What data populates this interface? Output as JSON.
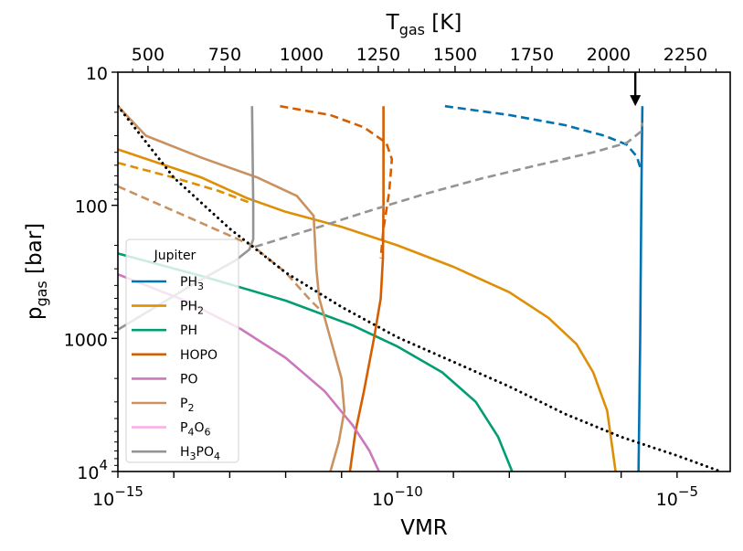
{
  "chart_data": {
    "type": "line",
    "title": "",
    "xlabel": "VMR",
    "ylabel_main": "p",
    "ylabel_sub": "gas",
    "ylabel_unit": " [bar]",
    "top_xlabel_main": "T",
    "top_xlabel_sub": "gas",
    "top_xlabel_unit": " [K]",
    "x_scale": "log",
    "y_scale": "log",
    "xlim_log10": [
      -15,
      -4.05
    ],
    "ylim": [
      10,
      10000
    ],
    "y_inverted": true,
    "top_xlim": [
      402,
      2396
    ],
    "x_ticks": [
      {
        "base": "10",
        "exp": "−15",
        "v": -15
      },
      {
        "base": "10",
        "exp": "−10",
        "v": -10
      },
      {
        "base": "10",
        "exp": "−5",
        "v": -5
      }
    ],
    "y_ticks": [
      {
        "label": "10",
        "exp": "",
        "v": 10
      },
      {
        "label": "100",
        "exp": "",
        "v": 100
      },
      {
        "label": "1000",
        "exp": "",
        "v": 1000
      },
      {
        "label": "10",
        "exp": "4",
        "v": 10000
      }
    ],
    "top_ticks": [
      500,
      750,
      1000,
      1250,
      1500,
      1750,
      2000,
      2250
    ],
    "legend": {
      "title": "Jupiter",
      "location": "lower-left",
      "entries": [
        {
          "main": "PH",
          "sub": "3",
          "tail": "",
          "sub2": "",
          "color": "#0173b2"
        },
        {
          "main": "PH",
          "sub": "2",
          "tail": "",
          "sub2": "",
          "color": "#de8f05"
        },
        {
          "main": "PH",
          "sub": "",
          "tail": "",
          "sub2": "",
          "color": "#029e73"
        },
        {
          "main": "HOPO",
          "sub": "",
          "tail": "",
          "sub2": "",
          "color": "#d55e00"
        },
        {
          "main": "PO",
          "sub": "",
          "tail": "",
          "sub2": "",
          "color": "#cc78bc"
        },
        {
          "main": "P",
          "sub": "2",
          "tail": "",
          "sub2": "",
          "color": "#ca9161"
        },
        {
          "main": "P",
          "sub": "4",
          "tail": "O",
          "sub2": "6",
          "color": "#fbafe4"
        },
        {
          "main": "H",
          "sub": "3",
          "tail": "PO",
          "sub2": "4",
          "color": "#949494"
        }
      ]
    },
    "annotation": {
      "type": "arrow",
      "T_K": 2087,
      "from_p": 10,
      "to_p": 18
    },
    "series": [
      {
        "name": "PH3 (solid)",
        "color": "#0173b2",
        "style": "solid",
        "points": [
          [
            -5.62,
            18
          ],
          [
            -5.63,
            40
          ],
          [
            -5.64,
            100
          ],
          [
            -5.66,
            1000
          ],
          [
            -5.69,
            10000
          ]
        ]
      },
      {
        "name": "PH3 (dashed)",
        "color": "#0173b2",
        "style": "dashed",
        "points": [
          [
            -9.15,
            18
          ],
          [
            -8.0,
            21
          ],
          [
            -7.0,
            25
          ],
          [
            -6.3,
            30
          ],
          [
            -5.9,
            35
          ],
          [
            -5.72,
            43
          ],
          [
            -5.64,
            55
          ]
        ]
      },
      {
        "name": "PH2 (solid)",
        "color": "#de8f05",
        "style": "solid",
        "points": [
          [
            -15,
            38
          ],
          [
            -13.5,
            62
          ],
          [
            -12.7,
            88
          ],
          [
            -12.0,
            112
          ],
          [
            -11.0,
            145
          ],
          [
            -10.0,
            200
          ],
          [
            -9.0,
            290
          ],
          [
            -8.0,
            450
          ],
          [
            -7.3,
            700
          ],
          [
            -6.8,
            1100
          ],
          [
            -6.5,
            1800
          ],
          [
            -6.25,
            3500
          ],
          [
            -6.1,
            10000
          ]
        ]
      },
      {
        "name": "PH2 (dashed)",
        "color": "#de8f05",
        "style": "dashed",
        "points": [
          [
            -15,
            48
          ],
          [
            -14,
            62
          ],
          [
            -13.2,
            78
          ],
          [
            -12.6,
            97
          ]
        ]
      },
      {
        "name": "PH",
        "color": "#029e73",
        "style": "solid",
        "points": [
          [
            -15,
            230
          ],
          [
            -13.5,
            340
          ],
          [
            -12.0,
            520
          ],
          [
            -10.8,
            800
          ],
          [
            -10.0,
            1150
          ],
          [
            -9.2,
            1800
          ],
          [
            -8.6,
            3000
          ],
          [
            -8.2,
            5500
          ],
          [
            -7.95,
            10000
          ]
        ]
      },
      {
        "name": "HOPO (solid)",
        "color": "#d55e00",
        "style": "solid",
        "points": [
          [
            -10.25,
            18
          ],
          [
            -10.25,
            100
          ],
          [
            -10.26,
            250
          ],
          [
            -10.3,
            500
          ],
          [
            -10.42,
            1000
          ],
          [
            -10.6,
            2500
          ],
          [
            -10.75,
            5000
          ],
          [
            -10.85,
            10000
          ]
        ]
      },
      {
        "name": "HOPO (dashed)",
        "color": "#d55e00",
        "style": "dashed",
        "points": [
          [
            -12.1,
            18
          ],
          [
            -11.2,
            21
          ],
          [
            -10.6,
            26
          ],
          [
            -10.2,
            34
          ],
          [
            -10.1,
            45
          ],
          [
            -10.15,
            80
          ],
          [
            -10.25,
            150
          ],
          [
            -10.3,
            250
          ]
        ]
      },
      {
        "name": "PO",
        "color": "#cc78bc",
        "style": "solid",
        "points": [
          [
            -15,
            330
          ],
          [
            -13.8,
            520
          ],
          [
            -12.8,
            850
          ],
          [
            -12.0,
            1400
          ],
          [
            -11.3,
            2500
          ],
          [
            -10.8,
            4500
          ],
          [
            -10.5,
            7000
          ],
          [
            -10.33,
            10000
          ]
        ]
      },
      {
        "name": "P2 (solid)",
        "color": "#ca9161",
        "style": "solid",
        "points": [
          [
            -15,
            18
          ],
          [
            -14.5,
            30
          ],
          [
            -13.5,
            44
          ],
          [
            -12.5,
            62
          ],
          [
            -11.8,
            85
          ],
          [
            -11.5,
            120
          ],
          [
            -11.45,
            300
          ],
          [
            -11.4,
            500
          ],
          [
            -11.2,
            1000
          ],
          [
            -11.0,
            2000
          ],
          [
            -10.95,
            3500
          ],
          [
            -11.05,
            6000
          ],
          [
            -11.2,
            10000
          ]
        ]
      },
      {
        "name": "P2 (dashed)",
        "color": "#ca9161",
        "style": "dashed",
        "points": [
          [
            -15,
            72
          ],
          [
            -13.8,
            120
          ],
          [
            -12.6,
            200
          ],
          [
            -12.0,
            320
          ],
          [
            -11.55,
            520
          ],
          [
            -11.4,
            600
          ]
        ]
      },
      {
        "name": "H3PO4 (solid)",
        "color": "#949494",
        "style": "solid",
        "points": [
          [
            -12.6,
            18
          ],
          [
            -12.58,
            100
          ],
          [
            -12.58,
            180
          ],
          [
            -12.65,
            215
          ],
          [
            -12.9,
            260
          ],
          [
            -13.6,
            380
          ],
          [
            -15,
            860
          ]
        ]
      },
      {
        "name": "H3PO4 (dashed)",
        "color": "#949494",
        "style": "dashed",
        "points": [
          [
            -12.55,
            205
          ],
          [
            -11.5,
            150
          ],
          [
            -10.5,
            110
          ],
          [
            -9.5,
            82
          ],
          [
            -8.5,
            63
          ],
          [
            -7.5,
            50
          ],
          [
            -6.5,
            40
          ],
          [
            -5.9,
            34
          ],
          [
            -5.65,
            28
          ],
          [
            -5.62,
            24
          ]
        ]
      },
      {
        "name": "T-p profile",
        "color": "#000000",
        "style": "dotted",
        "points": [
          [
            -15,
            18
          ],
          [
            -14.0,
            62
          ],
          [
            -13.0,
            150
          ],
          [
            -12.0,
            320
          ],
          [
            -11.0,
            580
          ],
          [
            -10.0,
            980
          ],
          [
            -9.0,
            1500
          ],
          [
            -8.0,
            2300
          ],
          [
            -7.0,
            3700
          ],
          [
            -6.0,
            5500
          ],
          [
            -5.0,
            7600
          ],
          [
            -4.25,
            9900
          ]
        ]
      }
    ]
  }
}
